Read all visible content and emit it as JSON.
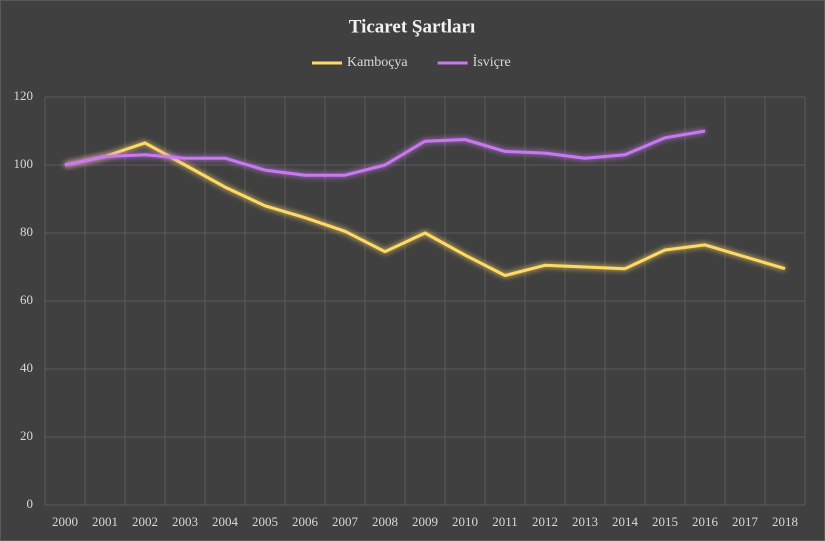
{
  "chart_data": {
    "type": "line",
    "title": "Ticaret Şartları",
    "categories": [
      "2000",
      "2001",
      "2002",
      "2003",
      "2004",
      "2005",
      "2006",
      "2007",
      "2008",
      "2009",
      "2010",
      "2011",
      "2012",
      "2013",
      "2014",
      "2015",
      "2016",
      "2017",
      "2018"
    ],
    "series": [
      {
        "name": "Kamboçya",
        "color": "#ffd966",
        "values": [
          100,
          102.5,
          106.5,
          100,
          93.5,
          88,
          84.5,
          80.5,
          74.5,
          80,
          73.5,
          67.5,
          70.5,
          70,
          69.5,
          75,
          76.5,
          73,
          69.5
        ]
      },
      {
        "name": "İsviçre",
        "color": "#c879f0",
        "values": [
          100,
          102.5,
          103,
          102,
          102,
          98.5,
          97,
          97,
          100,
          107,
          107.5,
          104,
          103.5,
          102,
          103,
          108,
          110,
          null,
          null
        ]
      }
    ],
    "ylim": [
      0,
      120
    ],
    "yticks": [
      0,
      20,
      40,
      60,
      80,
      100,
      120
    ],
    "grid": true,
    "legend": "top"
  }
}
